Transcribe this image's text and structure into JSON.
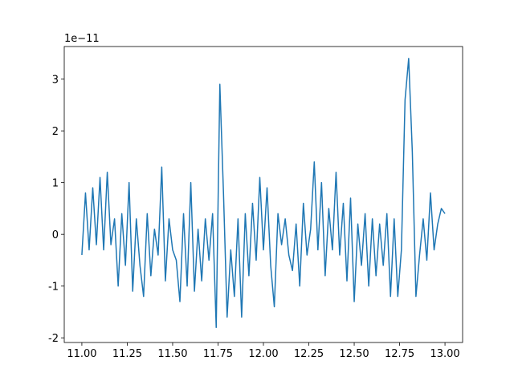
{
  "chart_data": {
    "type": "line",
    "offset_text": "1e−11",
    "color": "#1f77b4",
    "x": [
      11.0,
      11.02,
      11.04,
      11.06,
      11.08,
      11.1,
      11.12,
      11.14,
      11.16,
      11.18,
      11.2,
      11.22,
      11.24,
      11.26,
      11.28,
      11.3,
      11.32,
      11.34,
      11.36,
      11.38,
      11.4,
      11.42,
      11.44,
      11.46,
      11.48,
      11.5,
      11.52,
      11.54,
      11.56,
      11.58,
      11.6,
      11.62,
      11.64,
      11.66,
      11.68,
      11.7,
      11.72,
      11.74,
      11.76,
      11.78,
      11.8,
      11.82,
      11.84,
      11.86,
      11.88,
      11.9,
      11.92,
      11.94,
      11.96,
      11.98,
      12.0,
      12.02,
      12.04,
      12.06,
      12.08,
      12.1,
      12.12,
      12.14,
      12.16,
      12.18,
      12.2,
      12.22,
      12.24,
      12.26,
      12.28,
      12.3,
      12.32,
      12.34,
      12.36,
      12.38,
      12.4,
      12.42,
      12.44,
      12.46,
      12.48,
      12.5,
      12.52,
      12.54,
      12.56,
      12.58,
      12.6,
      12.62,
      12.64,
      12.66,
      12.68,
      12.7,
      12.72,
      12.74,
      12.76,
      12.78,
      12.8,
      12.82,
      12.84,
      12.86,
      12.88,
      12.9,
      12.92,
      12.94,
      12.96,
      12.98,
      13.0
    ],
    "values": [
      -0.4,
      0.8,
      -0.3,
      0.9,
      -0.2,
      1.1,
      -0.3,
      1.2,
      -0.2,
      0.3,
      -1.0,
      0.4,
      -0.6,
      1.0,
      -1.1,
      0.3,
      -0.6,
      -1.2,
      0.4,
      -0.8,
      0.1,
      -0.4,
      1.3,
      -0.9,
      0.3,
      -0.3,
      -0.5,
      -1.3,
      0.4,
      -1.0,
      1.0,
      -1.1,
      0.1,
      -0.9,
      0.3,
      -0.5,
      0.4,
      -1.8,
      2.9,
      0.8,
      -1.6,
      -0.3,
      -1.2,
      0.3,
      -1.6,
      0.4,
      -0.8,
      0.6,
      -0.5,
      1.1,
      -0.3,
      0.9,
      -0.6,
      -1.4,
      0.4,
      -0.2,
      0.3,
      -0.4,
      -0.7,
      0.2,
      -1.0,
      0.6,
      -0.4,
      0.1,
      1.4,
      -0.3,
      1.0,
      -0.8,
      0.5,
      -0.3,
      1.2,
      -0.4,
      0.6,
      -0.9,
      0.7,
      -1.3,
      0.2,
      -0.6,
      0.4,
      -1.0,
      0.3,
      -0.8,
      0.2,
      -0.6,
      0.4,
      -1.2,
      0.3,
      -1.2,
      -0.3,
      2.6,
      3.4,
      1.6,
      -1.2,
      -0.4,
      0.3,
      -0.5,
      0.8,
      -0.3,
      0.2,
      0.5,
      0.4
    ],
    "xlim": [
      10.903,
      13.097
    ],
    "ylim": [
      -2.09,
      3.63
    ],
    "xticks": [
      {
        "value": 11,
        "label": "11.00"
      },
      {
        "value": 11.25,
        "label": "11.25"
      },
      {
        "value": 11.5,
        "label": "11.50"
      },
      {
        "value": 11.75,
        "label": "11.75"
      },
      {
        "value": 12,
        "label": "12.00"
      },
      {
        "value": 12.25,
        "label": "12.25"
      },
      {
        "value": 12.5,
        "label": "12.50"
      },
      {
        "value": 12.75,
        "label": "12.75"
      },
      {
        "value": 13,
        "label": "13.00"
      }
    ],
    "yticks": [
      -2,
      -1,
      0,
      1,
      2,
      3
    ]
  }
}
